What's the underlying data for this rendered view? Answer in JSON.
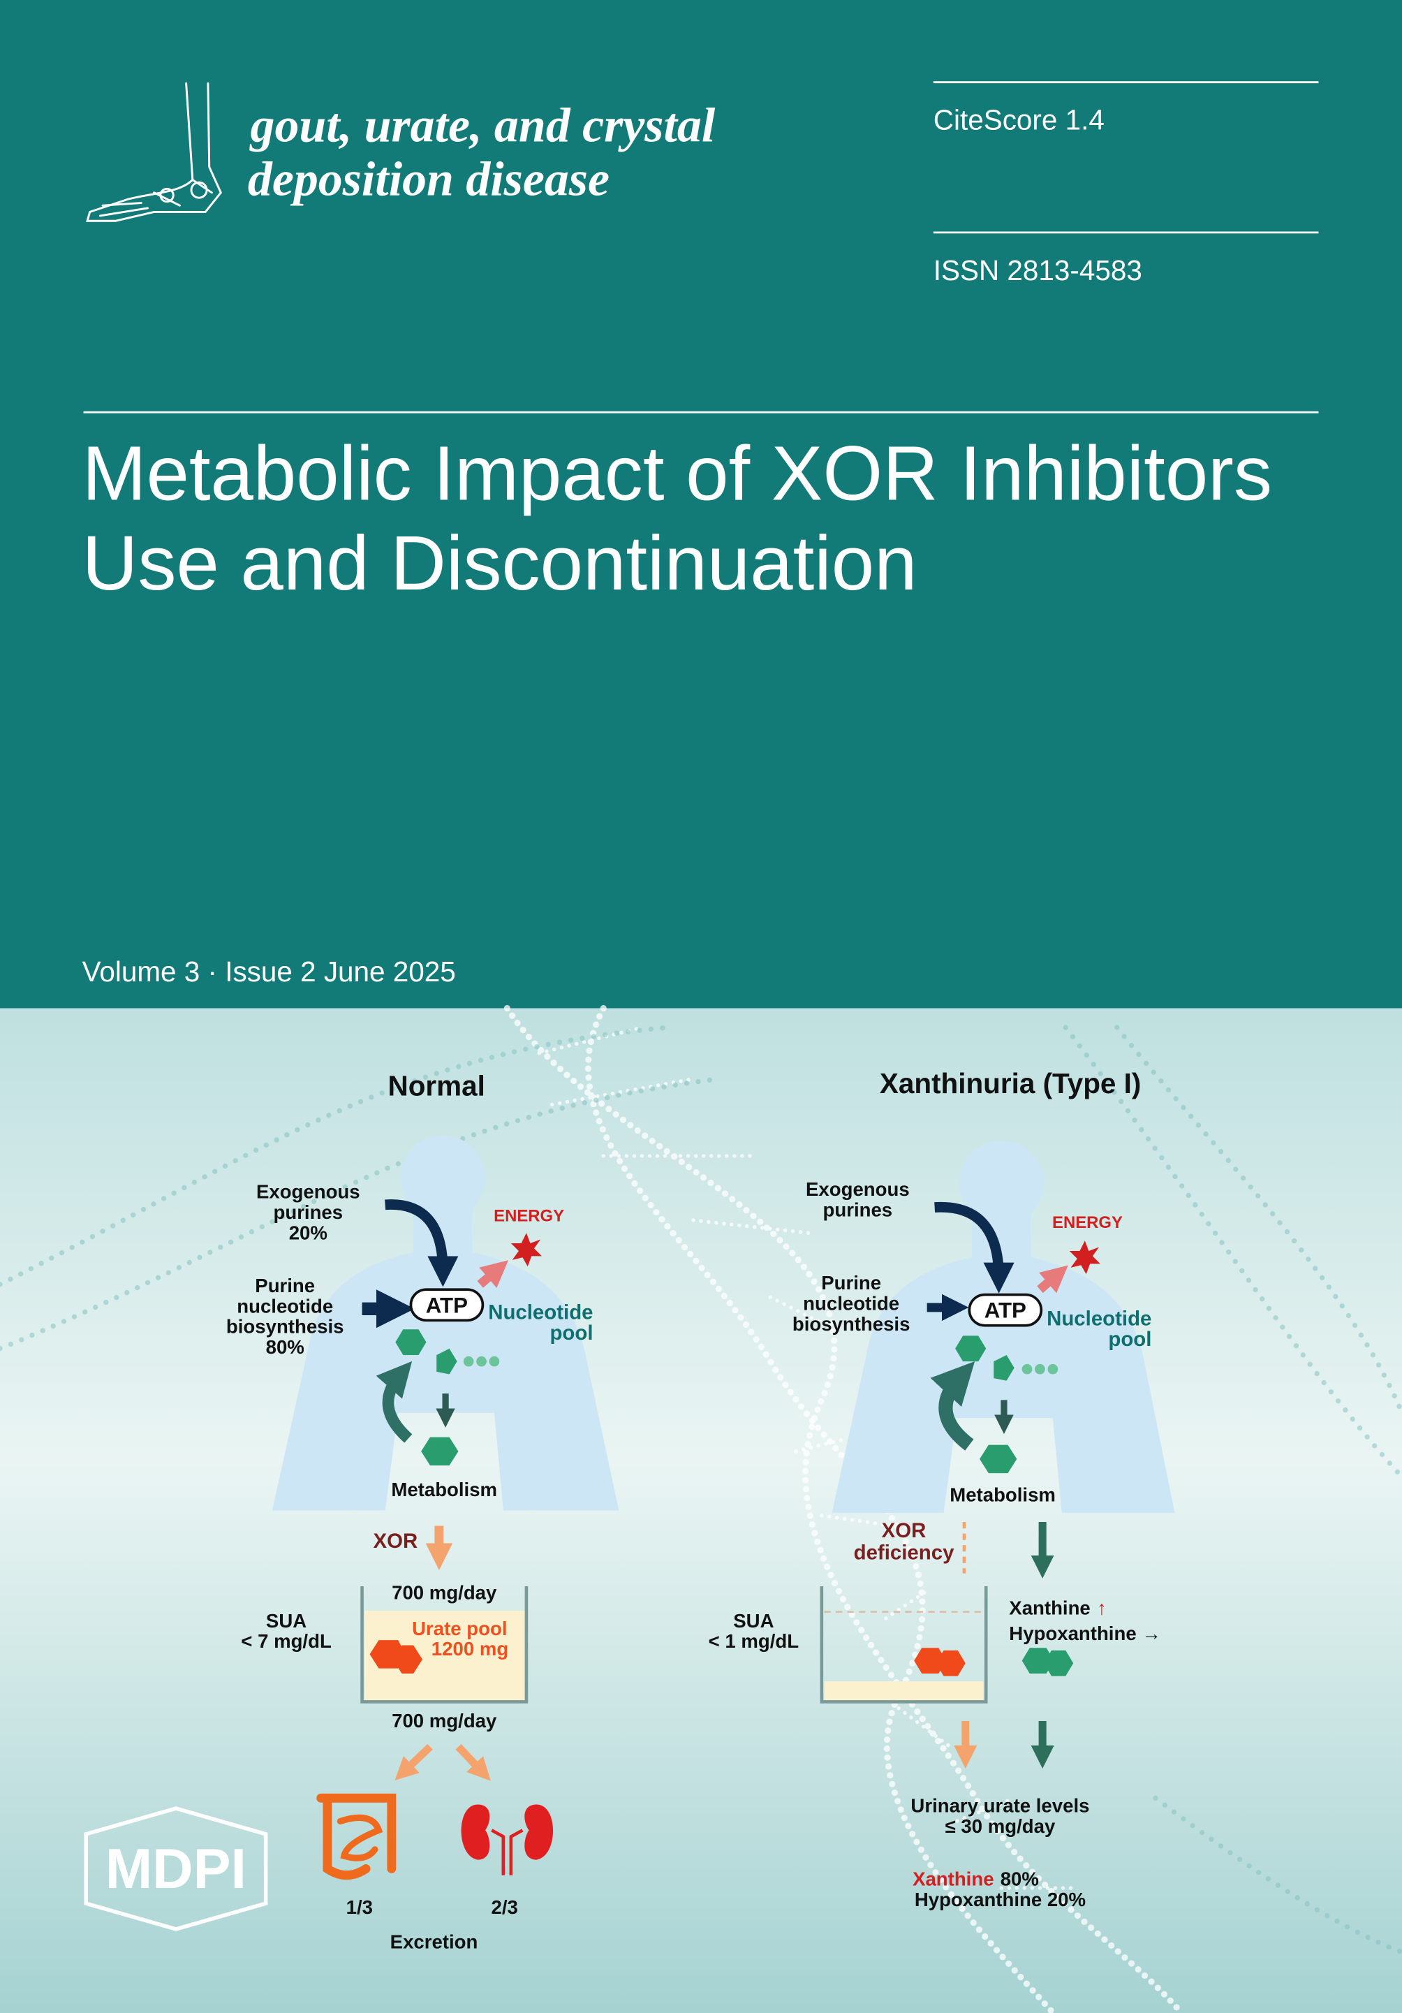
{
  "header": {
    "journal_title": [
      "gout, urate, and crystal",
      "deposition disease"
    ],
    "citescore": "CiteScore 1.4",
    "issn": "ISSN 2813-4583"
  },
  "article_title": [
    "Metabolic Impact of XOR Inhibitors",
    "Use and Discontinuation"
  ],
  "issue": "Volume 3 · Issue 2 June 2025",
  "figure": {
    "normal": {
      "title": "Normal",
      "exogenous": [
        "Exogenous",
        "purines",
        "20%"
      ],
      "biosynthesis": [
        "Purine",
        "nucleotide",
        "biosynthesis",
        "80%"
      ],
      "energy": "ENERGY",
      "atp": "ATP",
      "nucleotide_pool": [
        "Nucleotide",
        "pool"
      ],
      "metabolism": "Metabolism",
      "enzyme": [
        "XOR"
      ],
      "inflow": "700 mg/day",
      "sua": [
        "SUA",
        "< 7 mg/dL"
      ],
      "urate_pool": [
        "Urate pool",
        "1200 mg"
      ],
      "outflow": "700 mg/day",
      "gut_share": "1/3",
      "kidney_share": "2/3",
      "excretion": "Excretion"
    },
    "xanthinuria": {
      "title": "Xanthinuria (Type I)",
      "exogenous": [
        "Exogenous",
        "purines"
      ],
      "biosynthesis": [
        "Purine",
        "nucleotide",
        "biosynthesis"
      ],
      "energy": "ENERGY",
      "atp": "ATP",
      "nucleotide_pool": [
        "Nucleotide",
        "pool"
      ],
      "metabolism": "Metabolism",
      "enzyme": [
        "XOR",
        "deficiency"
      ],
      "sua": [
        "SUA",
        "< 1 mg/dL"
      ],
      "xanthine": [
        "Xanthine",
        "↑"
      ],
      "hypoxanthine": "Hypoxanthine →",
      "urinary": [
        "Urinary urate levels",
        "≤ 30 mg/day"
      ],
      "composition": [
        [
          "Xanthine",
          "80%"
        ],
        "Hypoxanthine 20%"
      ]
    }
  },
  "publisher": "MDPI"
}
